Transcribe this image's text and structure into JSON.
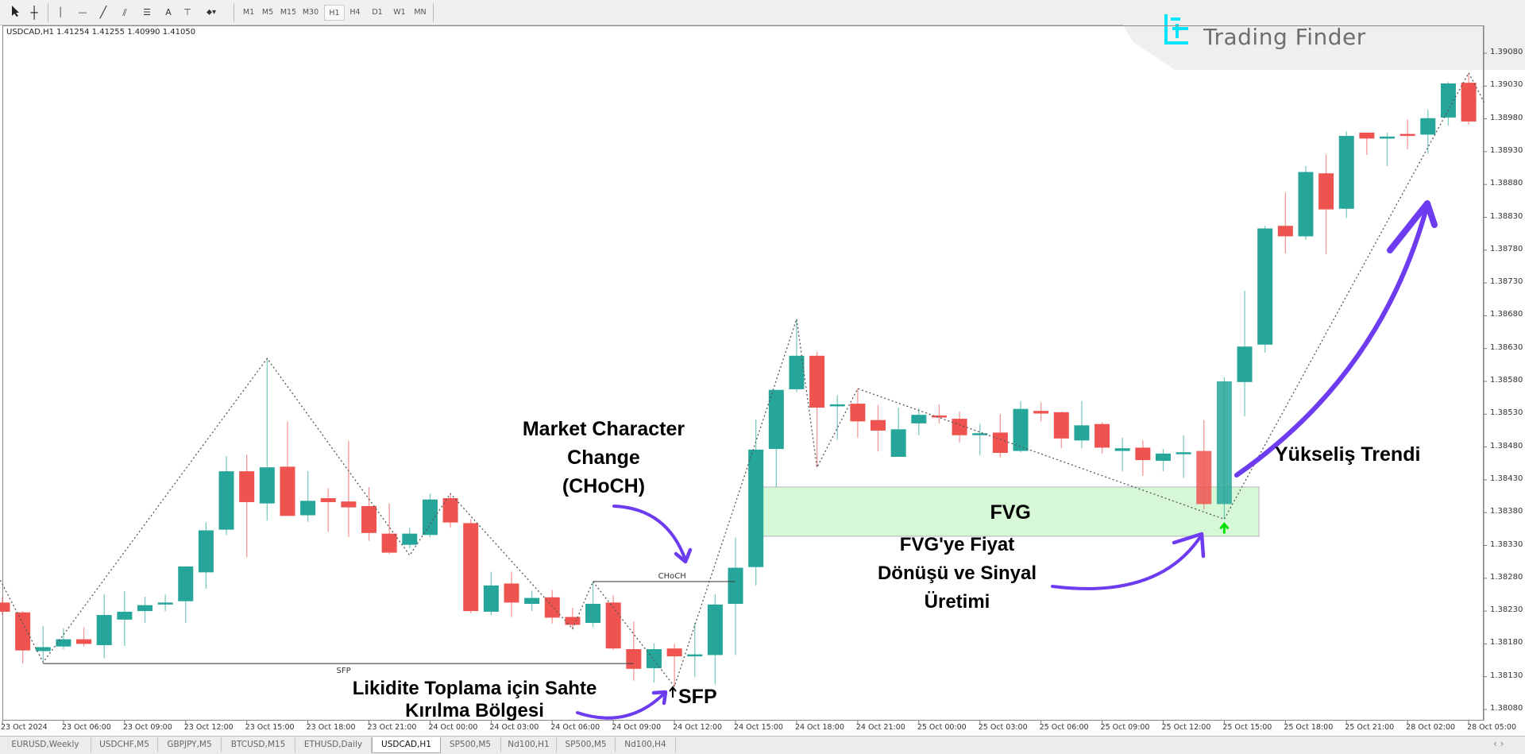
{
  "toolbar": {
    "tools": [
      "cursor-icon",
      "crosshair-icon",
      "vertical-line-icon",
      "horizontal-line-icon",
      "trendline-icon",
      "channel-icon",
      "fibonacci-icon",
      "text-icon",
      "text-label-icon",
      "shapes-dropdown-icon"
    ],
    "text_tool": "A",
    "timeframes": [
      "M1",
      "M5",
      "M15",
      "M30",
      "H1",
      "H4",
      "D1",
      "W1",
      "MN"
    ],
    "active_timeframe": "H1"
  },
  "logo": {
    "text": "Trading Finder",
    "color": "#00e5ff"
  },
  "chart": {
    "header": "USDCAD,H1  1.41254 1.41255 1.40990 1.41050",
    "sfp_label": "SFP",
    "choch_label": "CHoCH",
    "fvg_label": "FVG"
  },
  "annotations": {
    "choch_title": [
      "Market Character",
      "Change",
      "(CHoCH)"
    ],
    "sfp_zone": [
      "Likidite Toplama için Sahte",
      "Kırılma Bölgesi"
    ],
    "sfp_big": "SFP",
    "fvg_return": [
      "FVG'ye Fiyat",
      "Dönüşü ve Sinyal",
      "Üretimi"
    ],
    "uptrend": "Yükseliş Trendi"
  },
  "tabs": [
    {
      "label": "EURUSD,Weekly"
    },
    {
      "label": "USDCHF,M5"
    },
    {
      "label": "GBPJPY,M5"
    },
    {
      "label": "BTCUSD,M15"
    },
    {
      "label": "ETHUSD,Daily"
    },
    {
      "label": "USDCAD,H1",
      "active": true
    },
    {
      "label": "SP500,M5"
    },
    {
      "label": "Nd100,H1"
    },
    {
      "label": "SP500,M5"
    },
    {
      "label": "Nd100,H4"
    }
  ],
  "scroll_arrows": "‹ ›",
  "colors": {
    "bull": "#26a69a",
    "bear": "#ef5350",
    "fvg": "#c9f5c9",
    "annotation_arrow": "#6d3cf0",
    "signal_arrow": "#00e000"
  },
  "chart_data": {
    "type": "candlestick",
    "symbol": "USDCAD",
    "timeframe": "H1",
    "ylim": [
      1.38055,
      1.3913
    ],
    "y_ticks": [
      "1.39080",
      "1.39030",
      "1.38980",
      "1.38930",
      "1.38880",
      "1.38830",
      "1.38780",
      "1.38730",
      "1.38680",
      "1.38630",
      "1.38580",
      "1.38530",
      "1.38480",
      "1.38430",
      "1.38380",
      "1.38330",
      "1.38280",
      "1.38230",
      "1.38180",
      "1.38130",
      "1.38080"
    ],
    "x_tick_labels": [
      "23 Oct 2024",
      "23 Oct 06:00",
      "23 Oct 09:00",
      "23 Oct 12:00",
      "23 Oct 15:00",
      "23 Oct 18:00",
      "23 Oct 21:00",
      "24 Oct 00:00",
      "24 Oct 03:00",
      "24 Oct 06:00",
      "24 Oct 09:00",
      "24 Oct 12:00",
      "24 Oct 15:00",
      "24 Oct 18:00",
      "24 Oct 21:00",
      "25 Oct 00:00",
      "25 Oct 03:00",
      "25 Oct 06:00",
      "25 Oct 09:00",
      "25 Oct 12:00",
      "25 Oct 15:00",
      "25 Oct 18:00",
      "25 Oct 21:00",
      "28 Oct 02:00",
      "28 Oct 05:00"
    ],
    "x_tick_every_bars": 3,
    "ohlc": [
      [
        1.38243,
        1.38251,
        1.38224,
        1.38229
      ],
      [
        1.38228,
        1.3823,
        1.3815,
        1.3817
      ],
      [
        1.38169,
        1.38207,
        1.38152,
        1.38175
      ],
      [
        1.38176,
        1.38204,
        1.38172,
        1.38187
      ],
      [
        1.38187,
        1.38205,
        1.38176,
        1.3818
      ],
      [
        1.38178,
        1.38256,
        1.38158,
        1.38224
      ],
      [
        1.38217,
        1.3826,
        1.38177,
        1.38229
      ],
      [
        1.3823,
        1.38252,
        1.38212,
        1.38239
      ],
      [
        1.3824,
        1.38255,
        1.3823,
        1.38243
      ],
      [
        1.38245,
        1.38298,
        1.38212,
        1.38298
      ],
      [
        1.38289,
        1.38365,
        1.38264,
        1.38353
      ],
      [
        1.38354,
        1.38466,
        1.38346,
        1.38443
      ],
      [
        1.38443,
        1.38468,
        1.38312,
        1.38396
      ],
      [
        1.38394,
        1.38615,
        1.38368,
        1.38449
      ],
      [
        1.3845,
        1.38519,
        1.38375,
        1.38375
      ],
      [
        1.38376,
        1.38443,
        1.38366,
        1.38398
      ],
      [
        1.38402,
        1.38417,
        1.38351,
        1.38396
      ],
      [
        1.38397,
        1.38489,
        1.38343,
        1.38388
      ],
      [
        1.3839,
        1.38419,
        1.38337,
        1.38349
      ],
      [
        1.38348,
        1.38394,
        1.38317,
        1.38319
      ],
      [
        1.38331,
        1.38357,
        1.38326,
        1.38348
      ],
      [
        1.38346,
        1.38409,
        1.38342,
        1.384
      ],
      [
        1.38402,
        1.38409,
        1.38357,
        1.38365
      ],
      [
        1.38364,
        1.3837,
        1.38227,
        1.3823
      ],
      [
        1.38229,
        1.3829,
        1.38224,
        1.38269
      ],
      [
        1.38272,
        1.3829,
        1.38221,
        1.38243
      ],
      [
        1.38241,
        1.38261,
        1.3823,
        1.3825
      ],
      [
        1.38251,
        1.38262,
        1.38211,
        1.3822
      ],
      [
        1.38221,
        1.38235,
        1.38203,
        1.38209
      ],
      [
        1.38212,
        1.38275,
        1.38206,
        1.38241
      ],
      [
        1.38243,
        1.38254,
        1.38171,
        1.38173
      ],
      [
        1.38172,
        1.38214,
        1.38124,
        1.38142
      ],
      [
        1.38143,
        1.38181,
        1.38121,
        1.38172
      ],
      [
        1.38173,
        1.3818,
        1.38115,
        1.38161
      ],
      [
        1.38161,
        1.38212,
        1.3813,
        1.38164
      ],
      [
        1.38163,
        1.38256,
        1.38118,
        1.3824
      ],
      [
        1.38241,
        1.38342,
        1.38163,
        1.38296
      ],
      [
        1.38297,
        1.38522,
        1.38269,
        1.38476
      ],
      [
        1.38477,
        1.38567,
        1.38419,
        1.38567
      ],
      [
        1.38568,
        1.38675,
        1.38564,
        1.38619
      ],
      [
        1.38619,
        1.38625,
        1.38449,
        1.3854
      ],
      [
        1.38542,
        1.38559,
        1.38491,
        1.38545
      ],
      [
        1.38546,
        1.38569,
        1.38494,
        1.38519
      ],
      [
        1.38521,
        1.38544,
        1.38473,
        1.38505
      ],
      [
        1.38465,
        1.3854,
        1.38465,
        1.38507
      ],
      [
        1.38516,
        1.38539,
        1.38498,
        1.38529
      ],
      [
        1.38528,
        1.38545,
        1.38516,
        1.38525
      ],
      [
        1.38523,
        1.38534,
        1.38487,
        1.38498
      ],
      [
        1.38499,
        1.38515,
        1.38467,
        1.38501
      ],
      [
        1.38502,
        1.3853,
        1.38464,
        1.38471
      ],
      [
        1.38474,
        1.3855,
        1.38472,
        1.38538
      ],
      [
        1.38535,
        1.38548,
        1.38519,
        1.38531
      ],
      [
        1.38533,
        1.38534,
        1.38478,
        1.38493
      ],
      [
        1.3849,
        1.3855,
        1.38478,
        1.38513
      ],
      [
        1.38515,
        1.38518,
        1.3847,
        1.38479
      ],
      [
        1.38474,
        1.38494,
        1.38443,
        1.38478
      ],
      [
        1.38479,
        1.3849,
        1.38436,
        1.3846
      ],
      [
        1.38459,
        1.38477,
        1.38443,
        1.3847
      ],
      [
        1.38471,
        1.38498,
        1.38433,
        1.38472
      ],
      [
        1.38474,
        1.38521,
        1.38385,
        1.38393
      ],
      [
        1.38393,
        1.38586,
        1.3837,
        1.3858
      ],
      [
        1.38579,
        1.38718,
        1.38527,
        1.38633
      ],
      [
        1.38636,
        1.38817,
        1.38624,
        1.38813
      ],
      [
        1.38817,
        1.38868,
        1.38775,
        1.38801
      ],
      [
        1.38801,
        1.38908,
        1.38796,
        1.38899
      ],
      [
        1.38897,
        1.38926,
        1.38774,
        1.38842
      ],
      [
        1.38843,
        1.38961,
        1.38829,
        1.38954
      ],
      [
        1.38959,
        1.38959,
        1.38925,
        1.3895
      ],
      [
        1.38951,
        1.38959,
        1.38908,
        1.38953
      ],
      [
        1.38957,
        1.38979,
        1.38934,
        1.38954
      ],
      [
        1.38956,
        1.38994,
        1.38927,
        1.38981
      ],
      [
        1.38982,
        1.39036,
        1.3897,
        1.39034
      ],
      [
        1.39035,
        1.3905,
        1.38971,
        1.38976
      ]
    ],
    "zigzag": [
      [
        -0.1,
        1.38277
      ],
      [
        2,
        1.38152
      ],
      [
        13,
        1.38615
      ],
      [
        20,
        1.38315
      ],
      [
        22,
        1.38409
      ],
      [
        28,
        1.38203
      ],
      [
        29,
        1.38275
      ],
      [
        33,
        1.38115
      ],
      [
        39,
        1.38675
      ],
      [
        40,
        1.38449
      ],
      [
        42,
        1.38569
      ],
      [
        60,
        1.3837
      ],
      [
        72,
        1.3905
      ],
      [
        72.8,
        1.39003
      ]
    ],
    "sfp_level": {
      "price": 1.3815,
      "from_bar": 2,
      "to_bar": 31
    },
    "choch_level": {
      "price": 1.38275,
      "from_bar": 29,
      "to_bar": 36
    },
    "fvg": {
      "top": 1.38419,
      "bottom": 1.38344,
      "from_bar": 37.3,
      "to_bar": 61.7
    },
    "signal_bar": 60
  }
}
